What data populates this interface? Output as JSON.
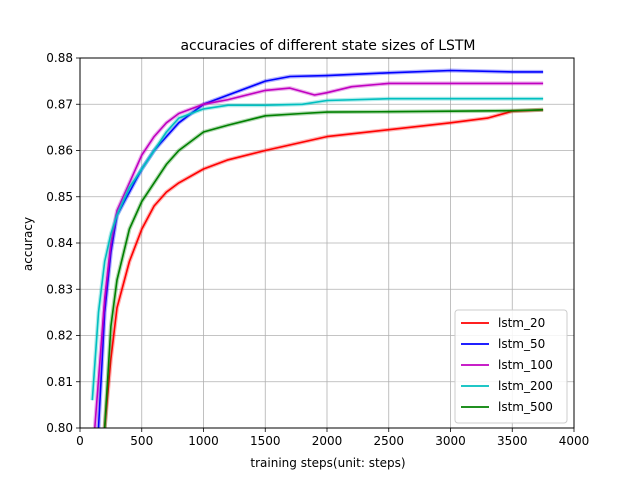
{
  "chart_data": {
    "type": "line",
    "title": "accuracies of different state sizes of LSTM",
    "xlabel": "training steps(unit: steps)",
    "ylabel": "accuracy",
    "xlim": [
      0,
      4000
    ],
    "ylim": [
      0.8,
      0.88
    ],
    "xticks": [
      0,
      500,
      1000,
      1500,
      2000,
      2500,
      3000,
      3500,
      4000
    ],
    "xtick_labels": [
      "0",
      "500",
      "1000",
      "1500",
      "2000",
      "2500",
      "3000",
      "3500",
      "4000"
    ],
    "yticks": [
      0.8,
      0.81,
      0.82,
      0.83,
      0.84,
      0.85,
      0.86,
      0.87,
      0.88
    ],
    "ytick_labels": [
      "0.80",
      "0.81",
      "0.82",
      "0.83",
      "0.84",
      "0.85",
      "0.86",
      "0.87",
      "0.88"
    ],
    "grid": true,
    "legend_position": "lower-right",
    "series": [
      {
        "name": "lstm_20",
        "color": "#ff0000",
        "x": [
          200,
          250,
          300,
          400,
          500,
          600,
          700,
          800,
          1000,
          1200,
          1500,
          2000,
          2500,
          3000,
          3300,
          3500,
          3750
        ],
        "values": [
          0.8,
          0.815,
          0.826,
          0.836,
          0.843,
          0.848,
          0.851,
          0.853,
          0.856,
          0.858,
          0.86,
          0.863,
          0.8645,
          0.866,
          0.867,
          0.8685,
          0.8688
        ]
      },
      {
        "name": "lstm_50",
        "color": "#0000ff",
        "x": [
          150,
          200,
          250,
          300,
          400,
          500,
          600,
          700,
          800,
          1000,
          1200,
          1500,
          1700,
          2000,
          2500,
          3000,
          3500,
          3750
        ],
        "values": [
          0.8,
          0.825,
          0.838,
          0.846,
          0.851,
          0.856,
          0.86,
          0.863,
          0.866,
          0.87,
          0.872,
          0.875,
          0.876,
          0.8762,
          0.8768,
          0.8773,
          0.877,
          0.877
        ]
      },
      {
        "name": "lstm_100",
        "color": "#c000c0",
        "x": [
          120,
          200,
          250,
          300,
          400,
          500,
          600,
          700,
          800,
          1000,
          1200,
          1500,
          1700,
          1900,
          2000,
          2200,
          2500,
          3000,
          3500,
          3750
        ],
        "values": [
          0.8,
          0.828,
          0.84,
          0.847,
          0.853,
          0.859,
          0.863,
          0.866,
          0.868,
          0.87,
          0.871,
          0.873,
          0.8735,
          0.872,
          0.8725,
          0.8738,
          0.8745,
          0.8745,
          0.8745,
          0.8745
        ]
      },
      {
        "name": "lstm_200",
        "color": "#00bfbf",
        "x": [
          100,
          150,
          200,
          250,
          300,
          400,
          500,
          600,
          700,
          800,
          1000,
          1200,
          1500,
          1800,
          2000,
          2500,
          3000,
          3500,
          3750
        ],
        "values": [
          0.806,
          0.825,
          0.836,
          0.842,
          0.846,
          0.852,
          0.856,
          0.86,
          0.864,
          0.867,
          0.869,
          0.8698,
          0.8698,
          0.87,
          0.8708,
          0.8712,
          0.8712,
          0.8712,
          0.8712
        ]
      },
      {
        "name": "lstm_500",
        "color": "#008000",
        "x": [
          200,
          250,
          300,
          400,
          500,
          600,
          700,
          800,
          1000,
          1200,
          1500,
          1800,
          2000,
          2500,
          3000,
          3500,
          3750
        ],
        "values": [
          0.8,
          0.822,
          0.832,
          0.843,
          0.849,
          0.853,
          0.857,
          0.86,
          0.864,
          0.8655,
          0.8675,
          0.868,
          0.8683,
          0.8684,
          0.8685,
          0.8686,
          0.8688
        ]
      }
    ]
  }
}
